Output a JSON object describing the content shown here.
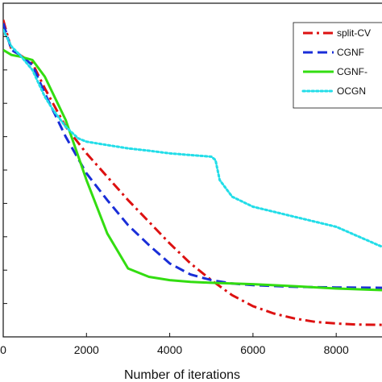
{
  "chart_data": {
    "type": "line",
    "title": "",
    "xlabel": "Number of iterations",
    "ylabel": "",
    "xlim": [
      0,
      9100
    ],
    "ylim": [
      0,
      1
    ],
    "x_ticks": [
      0,
      2000,
      4000,
      6000,
      8000
    ],
    "x_tick_labels": [
      "0",
      "2000",
      "4000",
      "6000",
      "8000"
    ],
    "y_ticks": [
      0.1,
      0.2,
      0.3,
      0.4,
      0.5,
      0.6,
      0.7,
      0.8,
      0.9
    ],
    "grid": false,
    "legend_position": "top-right",
    "series": [
      {
        "name": "split-CV",
        "color": "#dd1111",
        "dash": "dashdot",
        "x": [
          0,
          200,
          400,
          700,
          1000,
          1500,
          2000,
          2500,
          3000,
          3500,
          4000,
          4500,
          5000,
          5500,
          6000,
          6500,
          7000,
          7500,
          8000,
          8500,
          9100
        ],
        "y": [
          0.95,
          0.86,
          0.845,
          0.82,
          0.745,
          0.63,
          0.55,
          0.48,
          0.41,
          0.345,
          0.28,
          0.22,
          0.17,
          0.125,
          0.092,
          0.07,
          0.055,
          0.045,
          0.04,
          0.037,
          0.036
        ]
      },
      {
        "name": "CGNF",
        "color": "#1a2ed8",
        "dash": "dash",
        "x": [
          0,
          200,
          400,
          700,
          1000,
          1500,
          2000,
          2500,
          3000,
          3500,
          4000,
          4500,
          5000,
          5500,
          6000,
          7000,
          8000,
          9100
        ],
        "y": [
          0.94,
          0.86,
          0.845,
          0.815,
          0.73,
          0.6,
          0.49,
          0.41,
          0.335,
          0.275,
          0.22,
          0.187,
          0.17,
          0.16,
          0.155,
          0.15,
          0.148,
          0.147
        ]
      },
      {
        "name": "CGNF-",
        "color": "#33dd11",
        "dash": "solid",
        "x": [
          0,
          200,
          400,
          700,
          1000,
          1500,
          2000,
          2500,
          3000,
          3500,
          4000,
          4500,
          5000,
          5500,
          6000,
          7000,
          8000,
          9100
        ],
        "y": [
          0.86,
          0.845,
          0.84,
          0.83,
          0.78,
          0.65,
          0.47,
          0.31,
          0.205,
          0.18,
          0.17,
          0.165,
          0.162,
          0.16,
          0.158,
          0.152,
          0.145,
          0.14
        ]
      },
      {
        "name": "OCGN",
        "color": "#22dde8",
        "dash": "dot",
        "x": [
          0,
          200,
          400,
          700,
          1000,
          1200,
          1500,
          1800,
          2000,
          2500,
          3000,
          3500,
          4000,
          4500,
          5000,
          5100,
          5200,
          5500,
          6000,
          7000,
          8000,
          9100
        ],
        "y": [
          0.92,
          0.87,
          0.845,
          0.8,
          0.72,
          0.68,
          0.63,
          0.595,
          0.585,
          0.575,
          0.565,
          0.558,
          0.55,
          0.545,
          0.54,
          0.53,
          0.47,
          0.42,
          0.39,
          0.36,
          0.33,
          0.27
        ]
      }
    ]
  }
}
